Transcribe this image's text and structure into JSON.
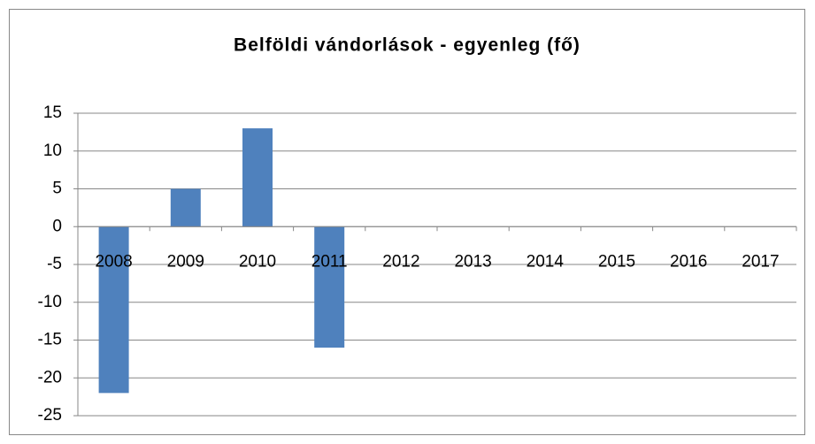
{
  "chart_data": {
    "type": "bar",
    "title": "Belföldi vándorlások - egyenleg (fő)",
    "categories": [
      "2008",
      "2009",
      "2010",
      "2011",
      "2012",
      "2013",
      "2014",
      "2015",
      "2016",
      "2017"
    ],
    "values": [
      -22,
      5,
      13,
      -16,
      0,
      0,
      0,
      0,
      0,
      0
    ],
    "color": "#4f81bd",
    "ylim": [
      -25,
      15
    ],
    "yticks": [
      -25,
      -20,
      -15,
      -10,
      -5,
      0,
      5,
      10,
      15
    ],
    "grid": true
  }
}
